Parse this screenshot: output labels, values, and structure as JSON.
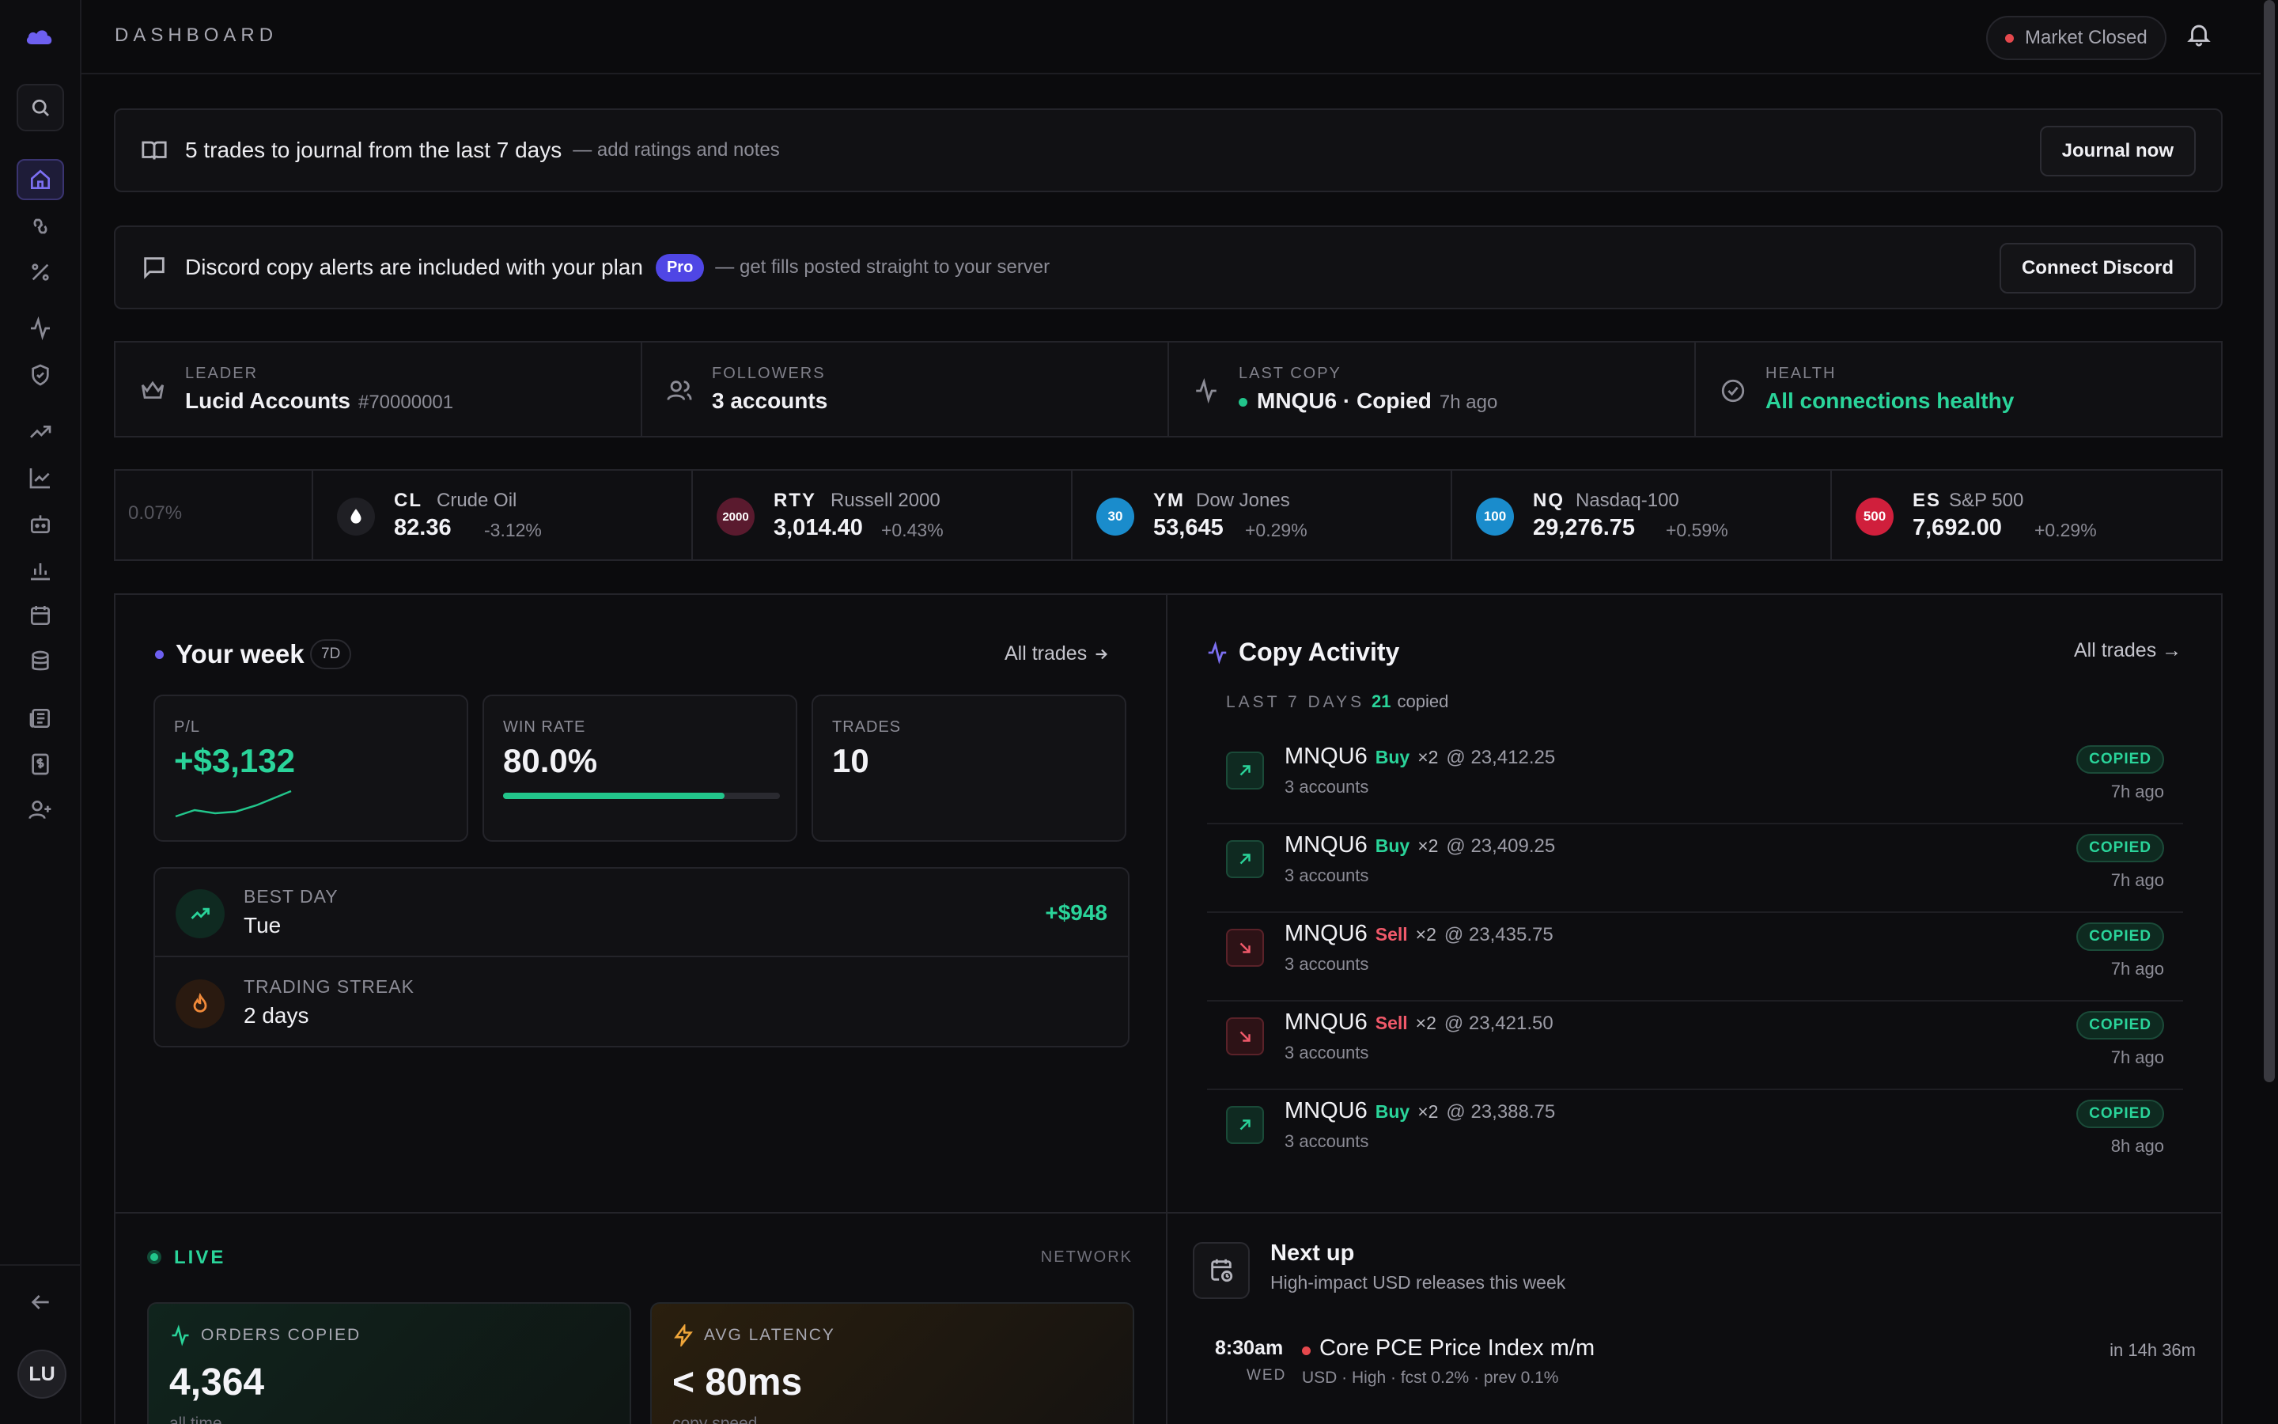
{
  "topbar": {
    "title": "DASHBOARD",
    "market_status": "Market Closed"
  },
  "sidebar": {
    "avatar_initials": "LU"
  },
  "journal_banner": {
    "text": "5 trades to journal from the last 7 days",
    "sub": "— add ratings and notes",
    "button": "Journal now"
  },
  "discord_banner": {
    "text": "Discord copy alerts are included with your plan",
    "badge": "Pro",
    "sub": "— get fills posted straight to your server",
    "button": "Connect Discord"
  },
  "stats": {
    "leader_label": "LEADER",
    "leader_value": "Lucid Accounts",
    "leader_id": "#70000001",
    "followers_label": "FOLLOWERS",
    "followers_value": "3 accounts",
    "last_copy_label": "LAST COPY",
    "last_copy_value": "MNQU6 · Copied",
    "last_copy_time": "7h ago",
    "health_label": "HEALTH",
    "health_value": "All connections healthy"
  },
  "ticker": {
    "fragment": "0.07%",
    "items": [
      {
        "symbol": "CL",
        "name": "Crude Oil",
        "price": "82.36",
        "change": "-3.12%",
        "badge": "",
        "color": "#1f1f24"
      },
      {
        "symbol": "RTY",
        "name": "Russell 2000",
        "price": "3,014.40",
        "change": "+0.43%",
        "badge": "2000",
        "color": "#5a1a2e"
      },
      {
        "symbol": "YM",
        "name": "Dow Jones",
        "price": "53,645",
        "change": "+0.29%",
        "badge": "30",
        "color": "#1a8ccc"
      },
      {
        "symbol": "NQ",
        "name": "Nasdaq-100",
        "price": "29,276.75",
        "change": "+0.59%",
        "badge": "100",
        "color": "#1a8ccc"
      },
      {
        "symbol": "ES",
        "name": "S&P 500",
        "price": "7,692.00",
        "change": "+0.29%",
        "badge": "500",
        "color": "#d01f3c"
      }
    ]
  },
  "your_week": {
    "title": "Your week",
    "period": "7D",
    "all_trades": "All trades",
    "pl_label": "P/L",
    "pl_value": "+$3,132",
    "win_label": "WIN RATE",
    "win_value": "80.0%",
    "win_fraction": 0.8,
    "trades_label": "TRADES",
    "trades_value": "10",
    "best_day_label": "BEST DAY",
    "best_day_value": "Tue",
    "best_day_amount": "+$948",
    "streak_label": "TRADING STREAK",
    "streak_value": "2 days"
  },
  "copy_activity": {
    "title": "Copy Activity",
    "all_trades": "All trades →",
    "period": "LAST 7 DAYS",
    "count": "21",
    "count_label": "copied",
    "rows": [
      {
        "symbol": "MNQU6",
        "side": "Buy",
        "qty": "×2",
        "price": "@ 23,412.25",
        "accounts": "3 accounts",
        "status": "COPIED",
        "time": "7h ago"
      },
      {
        "symbol": "MNQU6",
        "side": "Buy",
        "qty": "×2",
        "price": "@ 23,409.25",
        "accounts": "3 accounts",
        "status": "COPIED",
        "time": "7h ago"
      },
      {
        "symbol": "MNQU6",
        "side": "Sell",
        "qty": "×2",
        "price": "@ 23,435.75",
        "accounts": "3 accounts",
        "status": "COPIED",
        "time": "7h ago"
      },
      {
        "symbol": "MNQU6",
        "side": "Sell",
        "qty": "×2",
        "price": "@ 23,421.50",
        "accounts": "3 accounts",
        "status": "COPIED",
        "time": "7h ago"
      },
      {
        "symbol": "MNQU6",
        "side": "Buy",
        "qty": "×2",
        "price": "@ 23,388.75",
        "accounts": "3 accounts",
        "status": "COPIED",
        "time": "8h ago"
      }
    ]
  },
  "live": {
    "label": "LIVE",
    "network": "NETWORK",
    "orders_label": "ORDERS COPIED",
    "orders_value": "4,364",
    "orders_sub": "all time",
    "latency_label": "AVG LATENCY",
    "latency_value": "< 80ms",
    "latency_sub": "copy speed"
  },
  "next_up": {
    "title": "Next up",
    "sub": "High-impact USD releases this week",
    "event_time": "8:30am",
    "event_day": "WED",
    "event_title": "Core PCE Price Index m/m",
    "event_meta": "USD · High · fcst 0.2% · prev 0.1%",
    "event_in": "in 14h 36m"
  },
  "colors": {
    "accent": "#6d5ff0",
    "positive": "#2ad49a",
    "negative": "#f0596a"
  }
}
